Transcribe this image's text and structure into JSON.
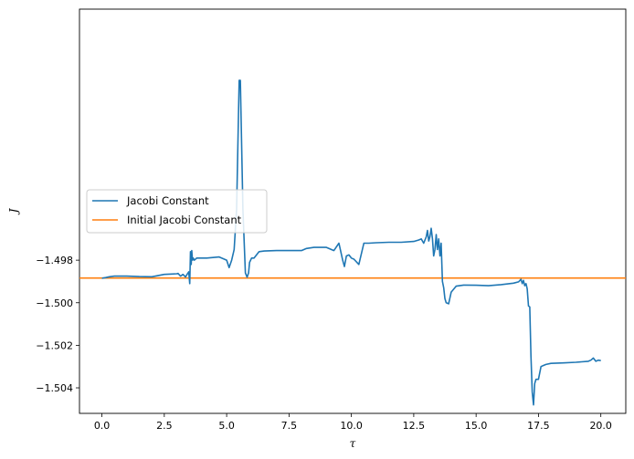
{
  "chart_data": {
    "type": "line",
    "title": "",
    "xlabel": "τ",
    "ylabel": "J",
    "xlim": [
      -0.9,
      21.0
    ],
    "ylim": [
      -1.5052,
      -1.4862
    ],
    "x_ticks": [
      0.0,
      2.5,
      5.0,
      7.5,
      10.0,
      12.5,
      15.0,
      17.5,
      20.0
    ],
    "x_tick_labels": [
      "0.0",
      "2.5",
      "5.0",
      "7.5",
      "10.0",
      "12.5",
      "15.0",
      "17.5",
      "20.0"
    ],
    "y_ticks": [
      -1.498,
      -1.5,
      -1.502,
      -1.504
    ],
    "y_tick_labels": [
      "−1.498",
      "−1.500",
      "−1.502",
      "−1.504"
    ],
    "grid": false,
    "legend": {
      "placement": "center-left"
    },
    "colors": {
      "series_0": "#1f77b4",
      "series_1": "#ff7f0e"
    },
    "series": [
      {
        "name": "Jacobi Constant",
        "x": [
          0.0,
          0.15,
          0.3,
          0.5,
          1.0,
          1.5,
          2.0,
          2.5,
          2.8,
          3.0,
          3.05,
          3.15,
          3.25,
          3.35,
          3.42,
          3.48,
          3.52,
          3.55,
          3.58,
          3.6,
          3.63,
          3.66,
          3.7,
          3.75,
          3.8,
          3.9,
          4.2,
          4.7,
          5.0,
          5.1,
          5.2,
          5.3,
          5.4,
          5.5,
          5.55,
          5.65,
          5.75,
          5.82,
          5.88,
          5.92,
          6.0,
          6.1,
          6.3,
          6.5,
          7.0,
          7.5,
          8.0,
          8.2,
          8.5,
          9.0,
          9.3,
          9.5,
          9.65,
          9.72,
          9.8,
          9.9,
          10.0,
          10.1,
          10.3,
          10.5,
          10.7,
          11.0,
          11.5,
          12.0,
          12.5,
          12.7,
          12.8,
          12.9,
          13.0,
          13.05,
          13.1,
          13.15,
          13.2,
          13.25,
          13.3,
          13.35,
          13.4,
          13.45,
          13.5,
          13.55,
          13.6,
          13.65,
          13.7,
          13.75,
          13.8,
          13.9,
          14.0,
          14.2,
          14.5,
          15.0,
          15.5,
          16.0,
          16.5,
          16.7,
          16.8,
          16.85,
          16.9,
          16.95,
          17.0,
          17.05,
          17.1,
          17.15,
          17.2,
          17.25,
          17.3,
          17.35,
          17.4,
          17.5,
          17.6,
          17.7,
          17.8,
          18.0,
          18.5,
          19.0,
          19.5,
          19.6,
          19.7,
          19.8,
          19.9,
          20.0
        ],
        "values": [
          -1.49885,
          -1.49882,
          -1.49878,
          -1.49875,
          -1.49875,
          -1.49877,
          -1.49878,
          -1.49867,
          -1.49865,
          -1.49864,
          -1.49862,
          -1.49875,
          -1.49867,
          -1.49879,
          -1.49865,
          -1.49855,
          -1.4991,
          -1.4976,
          -1.4982,
          -1.49755,
          -1.498,
          -1.4979,
          -1.498,
          -1.49795,
          -1.4979,
          -1.4979,
          -1.4979,
          -1.49785,
          -1.498,
          -1.49835,
          -1.498,
          -1.4975,
          -1.4956,
          -1.48955,
          -1.48955,
          -1.4956,
          -1.4986,
          -1.4988,
          -1.4986,
          -1.4981,
          -1.4979,
          -1.4979,
          -1.4976,
          -1.49757,
          -1.49755,
          -1.49755,
          -1.49755,
          -1.49745,
          -1.4974,
          -1.4974,
          -1.49755,
          -1.4972,
          -1.498,
          -1.4983,
          -1.4978,
          -1.49775,
          -1.4979,
          -1.49795,
          -1.4982,
          -1.4972,
          -1.4972,
          -1.49718,
          -1.49716,
          -1.49716,
          -1.49712,
          -1.49705,
          -1.497,
          -1.4972,
          -1.4969,
          -1.4966,
          -1.4971,
          -1.4969,
          -1.4965,
          -1.497,
          -1.4978,
          -1.4975,
          -1.4968,
          -1.4975,
          -1.497,
          -1.4978,
          -1.4972,
          -1.499,
          -1.4993,
          -1.4998,
          -1.5,
          -1.50005,
          -1.4995,
          -1.49922,
          -1.49917,
          -1.49918,
          -1.4992,
          -1.49915,
          -1.49908,
          -1.49902,
          -1.4989,
          -1.4991,
          -1.49895,
          -1.4992,
          -1.4991,
          -1.49935,
          -1.50015,
          -1.5002,
          -1.5025,
          -1.5042,
          -1.5048,
          -1.5038,
          -1.5036,
          -1.5036,
          -1.503,
          -1.50295,
          -1.5029,
          -1.50285,
          -1.50283,
          -1.5028,
          -1.50275,
          -1.5027,
          -1.5026,
          -1.50275,
          -1.5027,
          -1.50272
        ]
      },
      {
        "name": "Initial Jacobi Constant",
        "x": [
          -0.9,
          21.0
        ],
        "values": [
          -1.49884,
          -1.49884
        ]
      }
    ]
  }
}
